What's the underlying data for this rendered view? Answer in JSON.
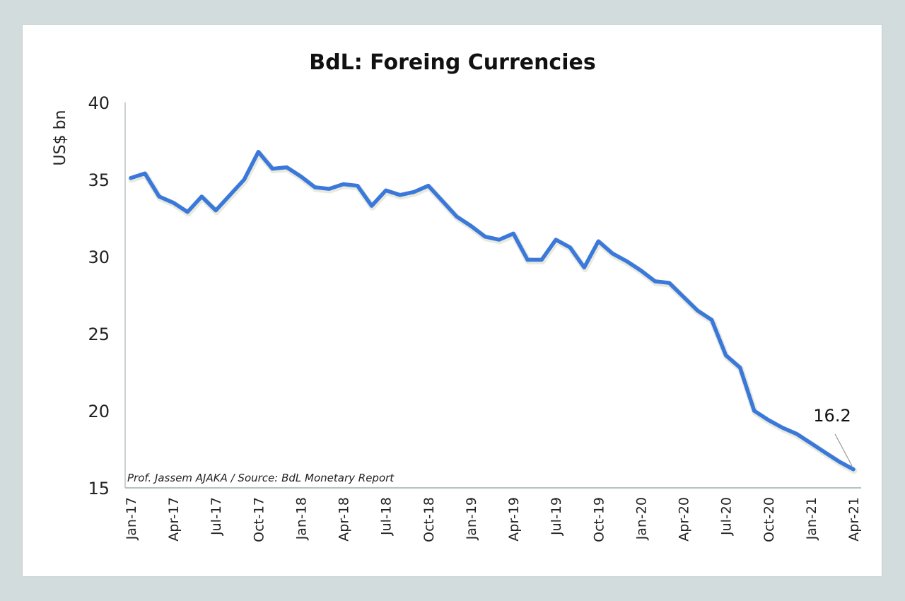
{
  "chart_data": {
    "type": "line",
    "title": "BdL: Foreing Currencies",
    "xlabel": "",
    "ylabel": "US$ bn",
    "ylim": [
      15,
      40
    ],
    "yticks": [
      40,
      35,
      30,
      25,
      20,
      15
    ],
    "grid": false,
    "x": [
      "Jan-17",
      "Feb-17",
      "Mar-17",
      "Apr-17",
      "May-17",
      "Jun-17",
      "Jul-17",
      "Aug-17",
      "Sep-17",
      "Oct-17",
      "Nov-17",
      "Dec-17",
      "Jan-18",
      "Feb-18",
      "Mar-18",
      "Apr-18",
      "May-18",
      "Jun-18",
      "Jul-18",
      "Aug-18",
      "Sep-18",
      "Oct-18",
      "Nov-18",
      "Dec-18",
      "Jan-19",
      "Feb-19",
      "Mar-19",
      "Apr-19",
      "May-19",
      "Jun-19",
      "Jul-19",
      "Aug-19",
      "Sep-19",
      "Oct-19",
      "Nov-19",
      "Dec-19",
      "Jan-20",
      "Feb-20",
      "Mar-20",
      "Apr-20",
      "May-20",
      "Jun-20",
      "Jul-20",
      "Aug-20",
      "Sep-20",
      "Oct-20",
      "Nov-20",
      "Dec-20",
      "Jan-21",
      "Feb-21",
      "Mar-21",
      "Apr-21"
    ],
    "xtick_labels": [
      "Jan-17",
      "Apr-17",
      "Jul-17",
      "Oct-17",
      "Jan-18",
      "Apr-18",
      "Jul-18",
      "Oct-18",
      "Jan-19",
      "Apr-19",
      "Jul-19",
      "Oct-19",
      "Jan-20",
      "Apr-20",
      "Jul-20",
      "Oct-20",
      "Jan-21",
      "Apr-21"
    ],
    "series": [
      {
        "name": "Foreign Currencies",
        "color": "#3a78dc",
        "values": [
          35.1,
          35.4,
          33.9,
          33.5,
          32.9,
          33.9,
          33.0,
          34.0,
          35.0,
          36.8,
          35.7,
          35.8,
          35.2,
          34.5,
          34.4,
          34.7,
          34.6,
          33.3,
          34.3,
          34.0,
          34.2,
          34.6,
          33.6,
          32.6,
          32.0,
          31.3,
          31.1,
          31.5,
          29.8,
          29.8,
          31.1,
          30.6,
          29.3,
          31.0,
          30.2,
          29.7,
          29.1,
          28.4,
          28.3,
          27.4,
          26.5,
          25.9,
          23.6,
          22.8,
          20.0,
          19.4,
          18.9,
          18.5,
          17.9,
          17.3,
          16.7,
          16.2
        ]
      }
    ],
    "annotations": [
      {
        "text": "16.2",
        "x": "Apr-21",
        "value": 16.2
      }
    ],
    "source_note": "Prof. Jassem AJAKA / Source: BdL Monetary Report"
  }
}
